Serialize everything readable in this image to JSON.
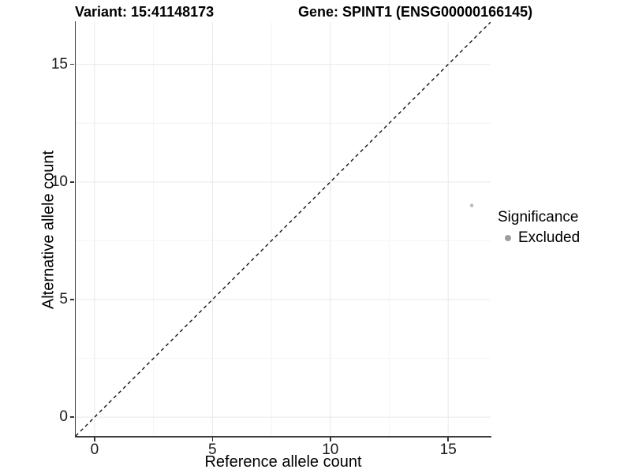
{
  "figure": {
    "background": "#ffffff"
  },
  "chart_data": {
    "type": "scatter",
    "title_left": "Variant: 15:41148173",
    "title_right": "Gene: SPINT1 (ENSG00000166145)",
    "xlabel": "Reference allele count",
    "ylabel": "Alternative allele count",
    "xlim": [
      -0.8,
      16.8
    ],
    "ylim": [
      -0.8,
      16.8
    ],
    "x_ticks": [
      0,
      5,
      10,
      15
    ],
    "y_ticks": [
      0,
      5,
      10,
      15
    ],
    "x_tick_labels": [
      "0",
      "5",
      "10",
      "15"
    ],
    "y_tick_labels": [
      "0",
      "5",
      "10",
      "15"
    ],
    "minor_ticks": [
      2.5,
      7.5,
      12.5
    ],
    "grid": "on",
    "reference_line": {
      "type": "identity",
      "style": "dashed",
      "color": "#121212"
    },
    "series": [
      {
        "name": "Excluded",
        "color": "#bdbdbd",
        "point_radius": 2.3,
        "points": [
          {
            "x": 16,
            "y": 9
          }
        ]
      }
    ],
    "legend": {
      "title": "Significance",
      "position": "right",
      "entries": [
        {
          "label": "Excluded",
          "color": "#9e9e9e"
        }
      ]
    }
  },
  "colors": {
    "grid_major": "#e8e8e8",
    "grid_minor": "#f4f4f4",
    "axis_line": "#3d3d3d",
    "tick": "#333333",
    "tick_label": "#1a1a1a",
    "point": "#bdbdbd",
    "legend_dot": "#9e9e9e"
  }
}
